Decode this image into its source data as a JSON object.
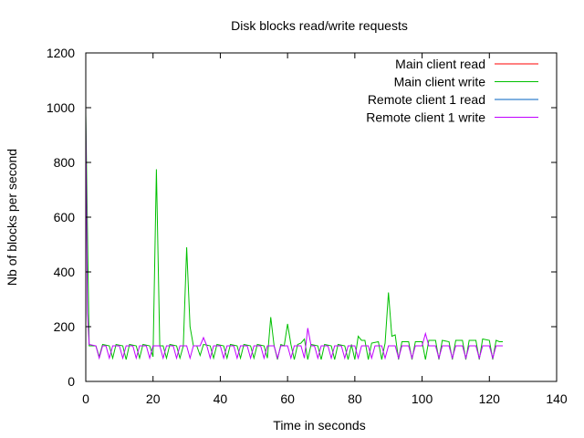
{
  "chart_data": {
    "type": "line",
    "title": "Disk blocks read/write requests",
    "xlabel": "Time in seconds",
    "ylabel": "Nb of blocks per second",
    "xlim": [
      0,
      140
    ],
    "ylim": [
      0,
      1200
    ],
    "xticks": [
      0,
      20,
      40,
      60,
      80,
      100,
      120,
      140
    ],
    "yticks": [
      0,
      200,
      400,
      600,
      800,
      1000,
      1200
    ],
    "legend_position": "top-right",
    "grid": false,
    "series": [
      {
        "name": "Main client read",
        "color": "#ff0000",
        "points": [
          [
            0,
            0
          ],
          [
            124,
            0
          ]
        ]
      },
      {
        "name": "Main client write",
        "color": "#00c000",
        "points": [
          [
            0,
            980
          ],
          [
            0.5,
            560
          ],
          [
            1,
            130
          ],
          [
            3,
            130
          ],
          [
            4,
            90
          ],
          [
            5,
            135
          ],
          [
            7,
            130
          ],
          [
            8,
            85
          ],
          [
            9,
            135
          ],
          [
            11,
            130
          ],
          [
            12,
            80
          ],
          [
            13,
            135
          ],
          [
            15,
            130
          ],
          [
            16,
            85
          ],
          [
            17,
            135
          ],
          [
            19,
            130
          ],
          [
            20,
            90
          ],
          [
            21,
            775
          ],
          [
            22,
            130
          ],
          [
            23,
            130
          ],
          [
            24,
            85
          ],
          [
            25,
            135
          ],
          [
            27,
            130
          ],
          [
            28,
            85
          ],
          [
            29,
            130
          ],
          [
            30,
            490
          ],
          [
            31,
            200
          ],
          [
            32,
            130
          ],
          [
            33,
            130
          ],
          [
            34,
            95
          ],
          [
            35,
            135
          ],
          [
            37,
            130
          ],
          [
            38,
            85
          ],
          [
            39,
            135
          ],
          [
            41,
            130
          ],
          [
            42,
            85
          ],
          [
            43,
            135
          ],
          [
            45,
            130
          ],
          [
            46,
            85
          ],
          [
            47,
            135
          ],
          [
            49,
            130
          ],
          [
            50,
            85
          ],
          [
            51,
            135
          ],
          [
            53,
            130
          ],
          [
            54,
            85
          ],
          [
            55,
            235
          ],
          [
            56,
            130
          ],
          [
            57,
            80
          ],
          [
            58,
            135
          ],
          [
            59,
            130
          ],
          [
            60,
            210
          ],
          [
            61,
            135
          ],
          [
            62,
            80
          ],
          [
            63,
            135
          ],
          [
            64,
            140
          ],
          [
            65,
            155
          ],
          [
            66,
            80
          ],
          [
            67,
            135
          ],
          [
            69,
            130
          ],
          [
            70,
            80
          ],
          [
            71,
            135
          ],
          [
            73,
            130
          ],
          [
            74,
            80
          ],
          [
            75,
            135
          ],
          [
            77,
            130
          ],
          [
            78,
            80
          ],
          [
            79,
            135
          ],
          [
            80,
            80
          ],
          [
            81,
            165
          ],
          [
            82,
            150
          ],
          [
            83,
            150
          ],
          [
            84,
            80
          ],
          [
            85,
            140
          ],
          [
            87,
            145
          ],
          [
            88,
            80
          ],
          [
            89,
            140
          ],
          [
            90,
            325
          ],
          [
            91,
            165
          ],
          [
            92,
            170
          ],
          [
            93,
            80
          ],
          [
            94,
            145
          ],
          [
            96,
            145
          ],
          [
            97,
            80
          ],
          [
            98,
            145
          ],
          [
            100,
            145
          ],
          [
            101,
            80
          ],
          [
            102,
            150
          ],
          [
            104,
            150
          ],
          [
            105,
            80
          ],
          [
            106,
            150
          ],
          [
            108,
            145
          ],
          [
            109,
            80
          ],
          [
            110,
            150
          ],
          [
            112,
            150
          ],
          [
            113,
            80
          ],
          [
            114,
            150
          ],
          [
            116,
            150
          ],
          [
            117,
            80
          ],
          [
            118,
            155
          ],
          [
            120,
            150
          ],
          [
            121,
            80
          ],
          [
            122,
            150
          ],
          [
            123,
            145
          ],
          [
            124,
            145
          ]
        ]
      },
      {
        "name": "Remote client 1 read",
        "color": "#0060c0",
        "points": [
          [
            0,
            0
          ],
          [
            124,
            0
          ]
        ]
      },
      {
        "name": "Remote client 1 write",
        "color": "#c000ff",
        "points": [
          [
            0,
            970
          ],
          [
            0.5,
            250
          ],
          [
            1,
            135
          ],
          [
            3,
            130
          ],
          [
            4,
            85
          ],
          [
            5,
            130
          ],
          [
            6,
            130
          ],
          [
            7,
            85
          ],
          [
            8,
            130
          ],
          [
            10,
            130
          ],
          [
            11,
            85
          ],
          [
            12,
            130
          ],
          [
            14,
            130
          ],
          [
            15,
            85
          ],
          [
            16,
            130
          ],
          [
            18,
            130
          ],
          [
            19,
            85
          ],
          [
            20,
            130
          ],
          [
            22,
            130
          ],
          [
            23,
            85
          ],
          [
            24,
            130
          ],
          [
            26,
            130
          ],
          [
            27,
            85
          ],
          [
            28,
            130
          ],
          [
            30,
            130
          ],
          [
            31,
            85
          ],
          [
            32,
            130
          ],
          [
            34,
            130
          ],
          [
            35,
            160
          ],
          [
            36,
            130
          ],
          [
            37,
            85
          ],
          [
            38,
            130
          ],
          [
            40,
            130
          ],
          [
            41,
            85
          ],
          [
            42,
            130
          ],
          [
            44,
            130
          ],
          [
            45,
            85
          ],
          [
            46,
            130
          ],
          [
            48,
            130
          ],
          [
            49,
            85
          ],
          [
            50,
            130
          ],
          [
            52,
            130
          ],
          [
            53,
            85
          ],
          [
            54,
            130
          ],
          [
            56,
            130
          ],
          [
            57,
            85
          ],
          [
            58,
            130
          ],
          [
            60,
            130
          ],
          [
            61,
            85
          ],
          [
            62,
            130
          ],
          [
            64,
            130
          ],
          [
            65,
            85
          ],
          [
            66,
            195
          ],
          [
            67,
            130
          ],
          [
            68,
            130
          ],
          [
            69,
            85
          ],
          [
            70,
            130
          ],
          [
            72,
            130
          ],
          [
            73,
            85
          ],
          [
            74,
            130
          ],
          [
            76,
            130
          ],
          [
            77,
            85
          ],
          [
            78,
            130
          ],
          [
            80,
            130
          ],
          [
            81,
            85
          ],
          [
            82,
            130
          ],
          [
            84,
            130
          ],
          [
            85,
            85
          ],
          [
            86,
            130
          ],
          [
            88,
            130
          ],
          [
            89,
            85
          ],
          [
            90,
            130
          ],
          [
            92,
            130
          ],
          [
            93,
            85
          ],
          [
            94,
            130
          ],
          [
            96,
            130
          ],
          [
            97,
            85
          ],
          [
            98,
            130
          ],
          [
            100,
            130
          ],
          [
            101,
            175
          ],
          [
            102,
            130
          ],
          [
            104,
            130
          ],
          [
            105,
            85
          ],
          [
            106,
            130
          ],
          [
            108,
            130
          ],
          [
            109,
            85
          ],
          [
            110,
            130
          ],
          [
            112,
            130
          ],
          [
            113,
            85
          ],
          [
            114,
            130
          ],
          [
            116,
            130
          ],
          [
            117,
            85
          ],
          [
            118,
            130
          ],
          [
            120,
            130
          ],
          [
            121,
            85
          ],
          [
            122,
            130
          ],
          [
            124,
            130
          ]
        ]
      }
    ]
  }
}
